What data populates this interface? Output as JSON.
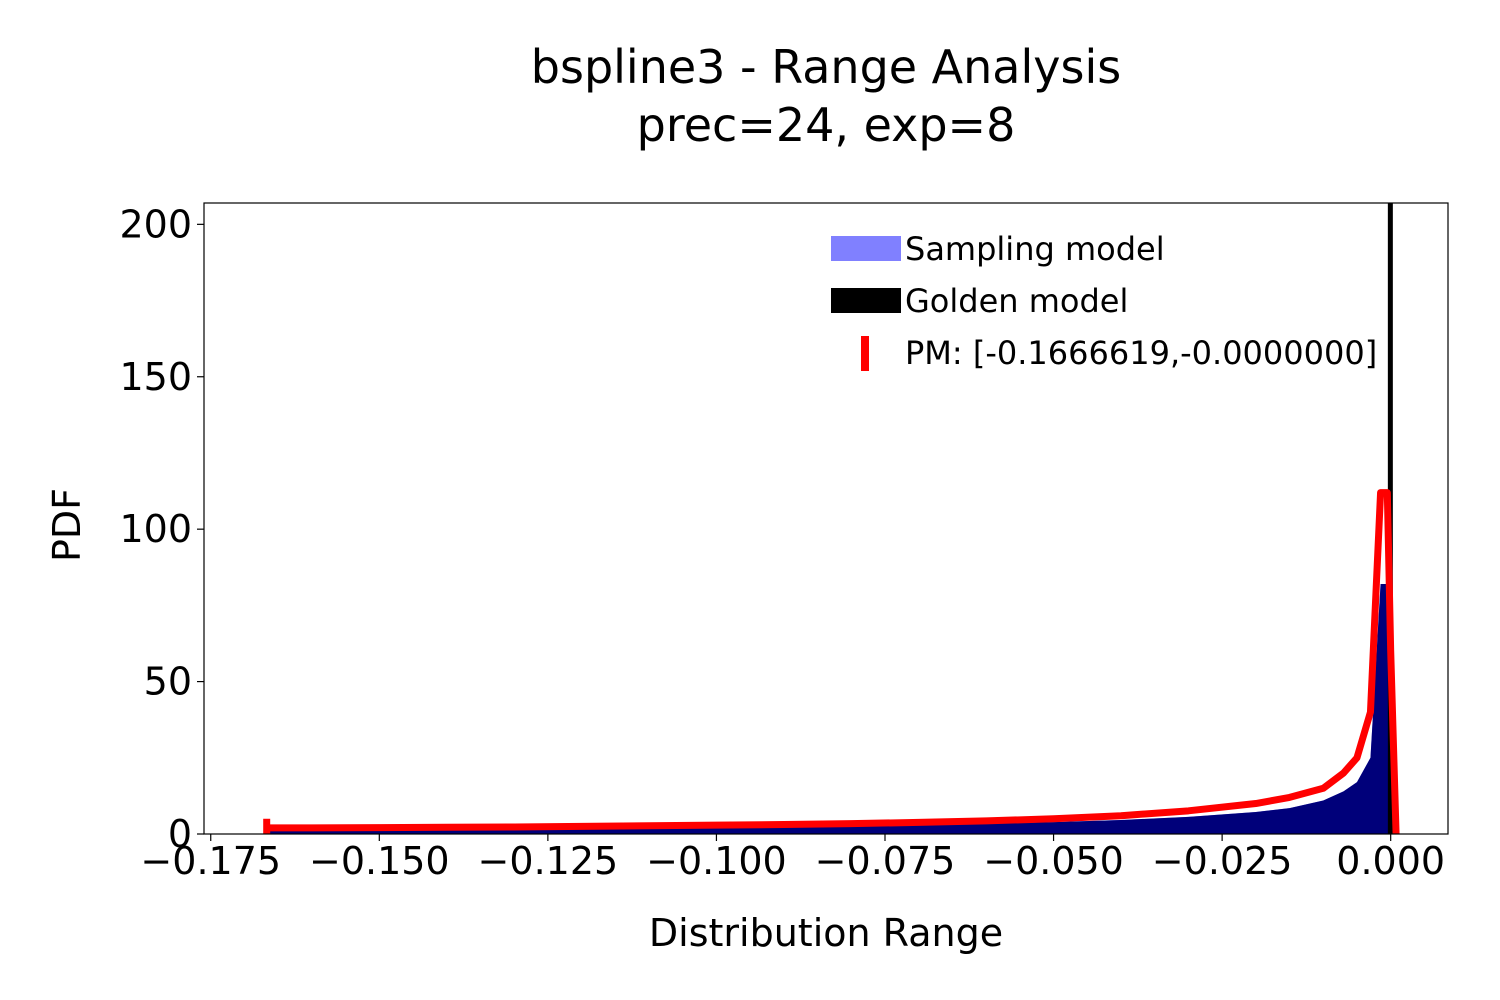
{
  "chart_data": {
    "type": "area",
    "title": "bspline3 - Range Analysis",
    "subtitle": "prec=24, exp=8",
    "xlabel": "Distribution Range",
    "ylabel": "PDF",
    "xlim": [
      -0.176,
      0.0085
    ],
    "ylim": [
      0,
      207
    ],
    "x_ticks": [
      -0.175,
      -0.15,
      -0.125,
      -0.1,
      -0.075,
      -0.05,
      -0.025,
      0.0
    ],
    "x_tick_labels": [
      "−0.175",
      "−0.150",
      "−0.125",
      "−0.100",
      "−0.075",
      "−0.050",
      "−0.025",
      "0.000"
    ],
    "y_ticks": [
      0,
      50,
      100,
      150,
      200
    ],
    "y_tick_labels": [
      "0",
      "50",
      "100",
      "150",
      "200"
    ],
    "grid": false,
    "legend_position": "top-right",
    "series": [
      {
        "name": "Sampling model",
        "kind": "histogram",
        "color": "#8080ff",
        "x": [
          -0.1667,
          -0.16,
          -0.15,
          -0.14,
          -0.13,
          -0.12,
          -0.11,
          -0.1,
          -0.09,
          -0.08,
          -0.07,
          -0.06,
          -0.05,
          -0.04,
          -0.03,
          -0.02,
          -0.015,
          -0.01,
          -0.007,
          -0.005,
          -0.003,
          -0.0015,
          -0.0005,
          0.0
        ],
        "values": [
          1.5,
          1.6,
          1.7,
          1.8,
          1.9,
          2.0,
          2.1,
          2.3,
          2.5,
          2.7,
          3.0,
          3.4,
          3.9,
          4.6,
          5.6,
          7.2,
          8.5,
          11,
          14,
          17,
          25,
          82,
          82,
          0
        ]
      },
      {
        "name": "Golden model",
        "kind": "line",
        "color": "#000000",
        "x": [
          -5e-05,
          -5e-05
        ],
        "values": [
          0,
          207
        ]
      },
      {
        "name": "PM: [-0.1666619,-0.0000000]",
        "kind": "line",
        "color": "#ff0000",
        "x": [
          -0.1667,
          -0.16,
          -0.15,
          -0.14,
          -0.13,
          -0.12,
          -0.11,
          -0.1,
          -0.09,
          -0.08,
          -0.07,
          -0.06,
          -0.05,
          -0.04,
          -0.03,
          -0.02,
          -0.015,
          -0.01,
          -0.007,
          -0.005,
          -0.003,
          -0.0015,
          -0.0005,
          0.0,
          0.0008
        ],
        "values": [
          2.0,
          2.0,
          2.1,
          2.2,
          2.3,
          2.5,
          2.7,
          2.9,
          3.1,
          3.4,
          3.8,
          4.3,
          5.0,
          6.0,
          7.6,
          10,
          12,
          15,
          20,
          25,
          40,
          112,
          112,
          60,
          0
        ]
      }
    ]
  },
  "dark_overlay_color": "#00007a"
}
